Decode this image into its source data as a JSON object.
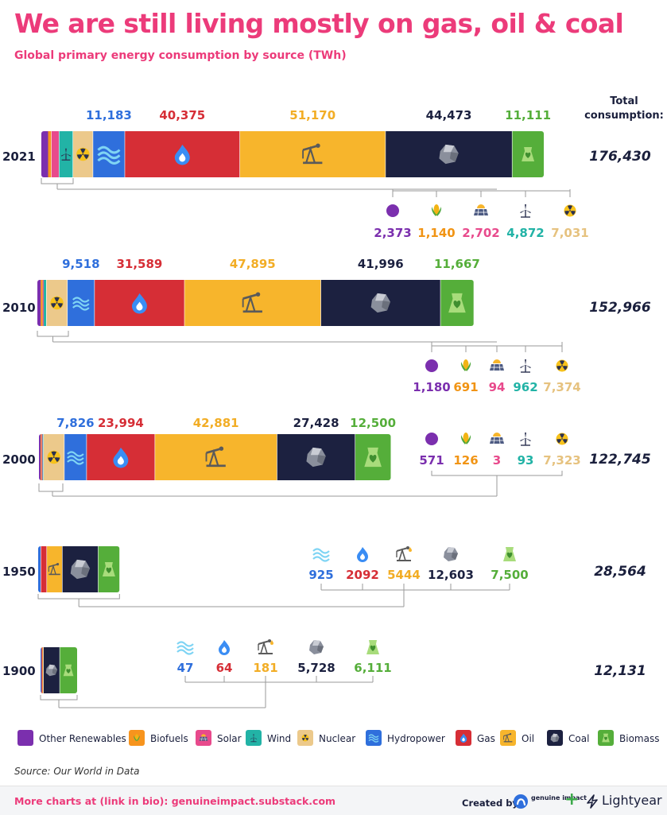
{
  "header": {
    "title": "We are still living mostly on gas, oil & coal",
    "subtitle": "Global primary energy consumption by source (TWh)"
  },
  "footer": {
    "source": "Source: Our World in Data",
    "more": "More charts at (link in bio): genuineimpact.substack.com",
    "created_by": "Created by",
    "brand1": "genuine impact",
    "plus": "+",
    "brand2": "Lightyear"
  },
  "colors": {
    "Other Renewables": "#7b2fae",
    "Biofuels": "#f7941d",
    "Solar": "#e84a8c",
    "Wind": "#22b3a6",
    "Nuclear": "#ecc98b",
    "Hydropower": "#2f6fdc",
    "Gas": "#d62e36",
    "Oil": "#f7b52c",
    "Coal": "#1c2140",
    "Biomass": "#55ae3a"
  },
  "label_colors": {
    "Other Renewables": "#7b2fae",
    "Biofuels": "#f19414",
    "Solar": "#e84a8c",
    "Wind": "#22b3a6",
    "Nuclear": "#e6c27f",
    "Hydropower": "#2f6fdc",
    "Gas": "#d62e36",
    "Oil": "#f2ad25",
    "Coal": "#1c2140",
    "Biomass": "#55ae3a"
  },
  "icons": {
    "Other Renewables": "purple-dot-icon",
    "Biofuels": "corn-icon",
    "Solar": "solar-panel-icon",
    "Wind": "wind-turbine-icon",
    "Nuclear": "nuclear-icon",
    "Hydropower": "waves-icon",
    "Gas": "flame-icon",
    "Oil": "oil-pump-icon",
    "Coal": "coal-rock-icon",
    "Biomass": "biomass-plant-icon"
  },
  "total_header": "Total consumption:",
  "chart_data": {
    "type": "bar",
    "orientation": "horizontal",
    "stacked": true,
    "unit": "TWh",
    "categories": [
      "2021",
      "2010",
      "2000",
      "1950",
      "1900"
    ],
    "series_order": [
      "Other Renewables",
      "Biofuels",
      "Solar",
      "Wind",
      "Nuclear",
      "Hydropower",
      "Gas",
      "Oil",
      "Coal",
      "Biomass"
    ],
    "years": [
      {
        "year": "2021",
        "total": "176,430",
        "values": [
          {
            "source": "Other Renewables",
            "value": 2373,
            "label": "2,373"
          },
          {
            "source": "Biofuels",
            "value": 1140,
            "label": "1,140"
          },
          {
            "source": "Solar",
            "value": 2702,
            "label": "2,702"
          },
          {
            "source": "Wind",
            "value": 4872,
            "label": "4,872"
          },
          {
            "source": "Nuclear",
            "value": 7031,
            "label": "7,031"
          },
          {
            "source": "Hydropower",
            "value": 11183,
            "label": "11,183"
          },
          {
            "source": "Gas",
            "value": 40375,
            "label": "40,375"
          },
          {
            "source": "Oil",
            "value": 51170,
            "label": "51,170"
          },
          {
            "source": "Coal",
            "value": 44473,
            "label": "44,473"
          },
          {
            "source": "Biomass",
            "value": 11111,
            "label": "11,111"
          }
        ]
      },
      {
        "year": "2010",
        "total": "152,966",
        "values": [
          {
            "source": "Other Renewables",
            "value": 1180,
            "label": "1,180"
          },
          {
            "source": "Biofuels",
            "value": 691,
            "label": "691"
          },
          {
            "source": "Solar",
            "value": 94,
            "label": "94"
          },
          {
            "source": "Wind",
            "value": 962,
            "label": "962"
          },
          {
            "source": "Nuclear",
            "value": 7374,
            "label": "7,374"
          },
          {
            "source": "Hydropower",
            "value": 9518,
            "label": "9,518"
          },
          {
            "source": "Gas",
            "value": 31589,
            "label": "31,589"
          },
          {
            "source": "Oil",
            "value": 47895,
            "label": "47,895"
          },
          {
            "source": "Coal",
            "value": 41996,
            "label": "41,996"
          },
          {
            "source": "Biomass",
            "value": 11667,
            "label": "11,667"
          }
        ]
      },
      {
        "year": "2000",
        "total": "122,745",
        "values": [
          {
            "source": "Other Renewables",
            "value": 571,
            "label": "571"
          },
          {
            "source": "Biofuels",
            "value": 126,
            "label": "126"
          },
          {
            "source": "Solar",
            "value": 3,
            "label": "3"
          },
          {
            "source": "Wind",
            "value": 93,
            "label": "93"
          },
          {
            "source": "Nuclear",
            "value": 7323,
            "label": "7,323"
          },
          {
            "source": "Hydropower",
            "value": 7826,
            "label": "7,826"
          },
          {
            "source": "Gas",
            "value": 23994,
            "label": "23,994"
          },
          {
            "source": "Oil",
            "value": 42881,
            "label": "42,881"
          },
          {
            "source": "Coal",
            "value": 27428,
            "label": "27,428"
          },
          {
            "source": "Biomass",
            "value": 12500,
            "label": "12,500"
          }
        ]
      },
      {
        "year": "1950",
        "total": "28,564",
        "values": [
          {
            "source": "Hydropower",
            "value": 925,
            "label": "925"
          },
          {
            "source": "Gas",
            "value": 2092,
            "label": "2092"
          },
          {
            "source": "Oil",
            "value": 5444,
            "label": "5444"
          },
          {
            "source": "Coal",
            "value": 12603,
            "label": "12,603"
          },
          {
            "source": "Biomass",
            "value": 7500,
            "label": "7,500"
          }
        ]
      },
      {
        "year": "1900",
        "total": "12,131",
        "values": [
          {
            "source": "Hydropower",
            "value": 47,
            "label": "47"
          },
          {
            "source": "Gas",
            "value": 64,
            "label": "64"
          },
          {
            "source": "Oil",
            "value": 181,
            "label": "181"
          },
          {
            "source": "Coal",
            "value": 5728,
            "label": "5,728"
          },
          {
            "source": "Biomass",
            "value": 6111,
            "label": "6,111"
          }
        ]
      }
    ],
    "legend": [
      "Other Renewables",
      "Biofuels",
      "Solar",
      "Wind",
      "Nuclear",
      "Hydropower",
      "Gas",
      "Oil",
      "Coal",
      "Biomass"
    ],
    "legend_position": "bottom",
    "grid": false
  }
}
